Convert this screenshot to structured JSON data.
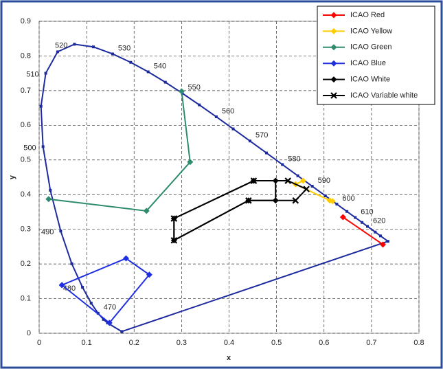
{
  "chart_data": {
    "type": "scatter",
    "xlabel": "x",
    "ylabel": "y",
    "xlim": [
      0,
      0.8
    ],
    "ylim": [
      0,
      0.9
    ],
    "xticks": [
      0,
      0.1,
      0.2,
      0.3,
      0.4,
      0.5,
      0.6,
      0.7,
      0.8
    ],
    "yticks": [
      0,
      0.1,
      0.2,
      0.3,
      0.4,
      0.5,
      0.6,
      0.7,
      0.8,
      0.9
    ],
    "grid": true,
    "legend": "upper right",
    "locus": {
      "color": "#1c2a9e",
      "marker": "square",
      "x": [
        0.1741,
        0.144,
        0.1355,
        0.1241,
        0.1096,
        0.0913,
        0.0687,
        0.0454,
        0.0235,
        0.0082,
        0.0039,
        0.0139,
        0.0389,
        0.0743,
        0.1142,
        0.1547,
        0.1929,
        0.2296,
        0.2658,
        0.3016,
        0.3373,
        0.3731,
        0.4087,
        0.4441,
        0.4788,
        0.5125,
        0.5448,
        0.5752,
        0.6029,
        0.627,
        0.6482,
        0.6658,
        0.6801,
        0.6915,
        0.7079,
        0.719,
        0.7347,
        0.1741
      ],
      "y": [
        0.005,
        0.0297,
        0.0399,
        0.0578,
        0.0868,
        0.1327,
        0.2007,
        0.295,
        0.4127,
        0.5384,
        0.6548,
        0.7502,
        0.812,
        0.8338,
        0.8262,
        0.8059,
        0.7816,
        0.7543,
        0.7243,
        0.6923,
        0.6589,
        0.6245,
        0.5896,
        0.5547,
        0.5202,
        0.4866,
        0.4544,
        0.4242,
        0.3965,
        0.3725,
        0.3514,
        0.334,
        0.3197,
        0.3083,
        0.292,
        0.2809,
        0.2653,
        0.005
      ],
      "labels": [
        null,
        null,
        null,
        470,
        null,
        480,
        null,
        490,
        null,
        500,
        null,
        510,
        null,
        520,
        null,
        530,
        null,
        540,
        null,
        550,
        null,
        560,
        null,
        570,
        null,
        580,
        null,
        590,
        null,
        600,
        null,
        610,
        null,
        620,
        null,
        null,
        null,
        null
      ]
    },
    "series": [
      {
        "name": "ICAO Red",
        "color": "#ff0000",
        "marker": "diamond",
        "x": [
          0.64,
          0.724
        ],
        "y": [
          0.335,
          0.256
        ]
      },
      {
        "name": "ICAO Yellow",
        "color": "#ffcc00",
        "marker": "diamond",
        "x": [
          0.556,
          0.54,
          0.612,
          0.618
        ],
        "y": [
          0.44,
          0.43,
          0.383,
          0.381
        ]
      },
      {
        "name": "ICAO Green",
        "color": "#2e8b6e",
        "marker": "diamond",
        "x": [
          0.3,
          0.318,
          0.226,
          0.02
        ],
        "y": [
          0.698,
          0.494,
          0.353,
          0.387
        ]
      },
      {
        "name": "ICAO Blue",
        "color": "#1f2fe0",
        "marker": "diamond",
        "x": [
          0.048,
          0.183,
          0.232,
          0.148,
          0.048
        ],
        "y": [
          0.139,
          0.216,
          0.169,
          0.03,
          0.139
        ]
      },
      {
        "name": "ICAO White",
        "color": "#000000",
        "marker": "diamond",
        "x": [
          0.284,
          0.452,
          0.498,
          0.498,
          0.441,
          0.284,
          0.284
        ],
        "y": [
          0.331,
          0.44,
          0.44,
          0.383,
          0.383,
          0.268,
          0.331
        ]
      },
      {
        "name": "ICAO Variable white",
        "color": "#000000",
        "marker": "x",
        "x": [
          0.284,
          0.452,
          0.524,
          0.563,
          0.54,
          0.441,
          0.284,
          0.284
        ],
        "y": [
          0.331,
          0.44,
          0.44,
          0.416,
          0.383,
          0.383,
          0.268,
          0.331
        ]
      }
    ]
  }
}
